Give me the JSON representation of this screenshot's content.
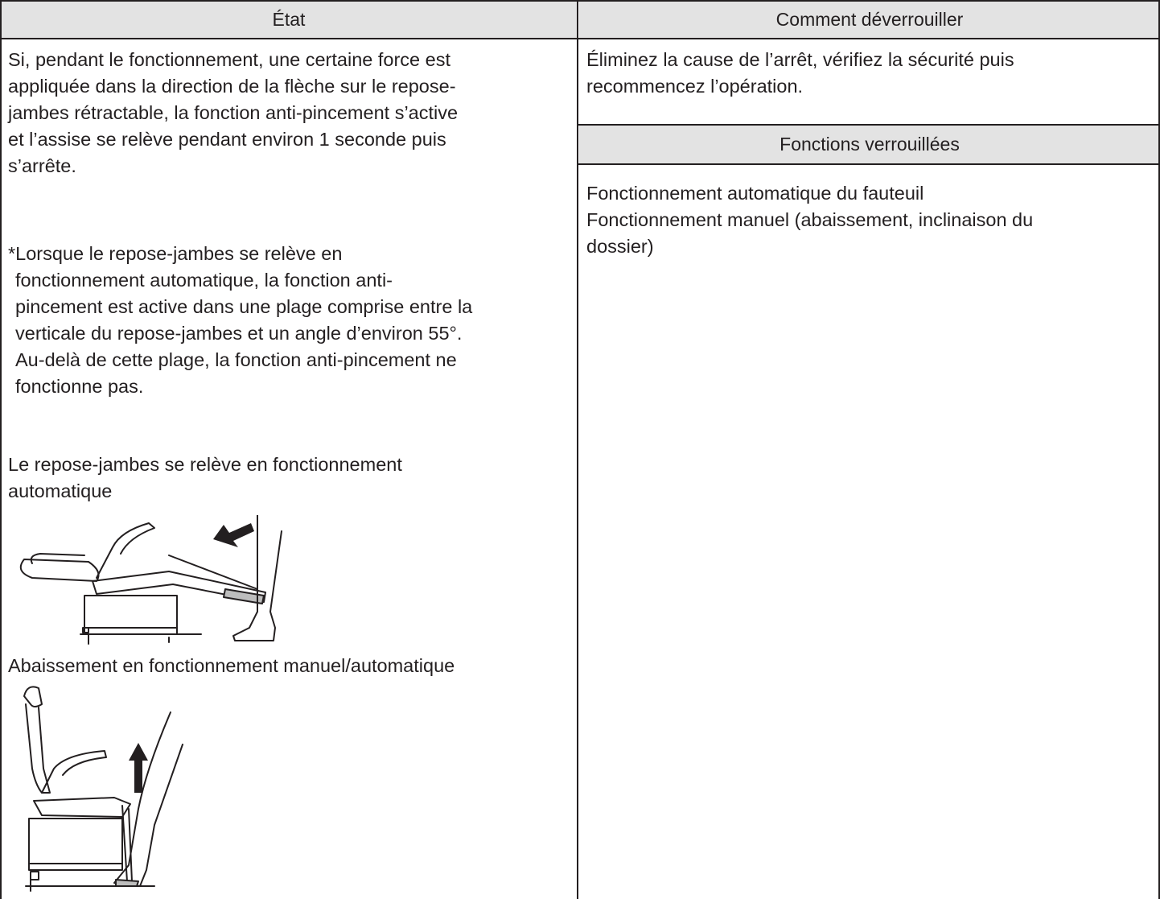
{
  "table": {
    "headers": [
      "État",
      "Comment déverrouiller"
    ],
    "state": {
      "paragraph": [
        "Si, pendant le fonctionnement, une certaine force est",
        "appliquée dans la direction de la flèche sur le repose-",
        "jambes rétractable, la fonction anti-pincement s’active",
        "et l’assise se relève pendant environ 1 seconde puis",
        "s’arrête."
      ],
      "note": [
        "*Lorsque le repose-jambes se relève en",
        "fonctionnement automatique, la fonction anti-",
        "pincement est active dans une plage comprise entre la",
        "verticale du repose-jambes et un angle d’environ 55°.",
        "Au-delà de cette plage, la fonction anti-pincement ne",
        "fonctionne pas."
      ],
      "caption_1": [
        "Le repose-jambes se relève en fonctionnement",
        "automatique"
      ],
      "caption_2": [
        "Abaissement en fonctionnement manuel/automatique"
      ]
    },
    "unlock": [
      "Éliminez la cause de l’arrêt, vérifiez la sécurité puis",
      "recommencez l’opération."
    ],
    "locked_functions": {
      "header": "Fonctions verrouillées",
      "items": [
        "Fonctionnement automatique du fauteuil",
        "Fonctionnement manuel (abaissement, inclinaison du",
        "dossier)"
      ]
    }
  }
}
